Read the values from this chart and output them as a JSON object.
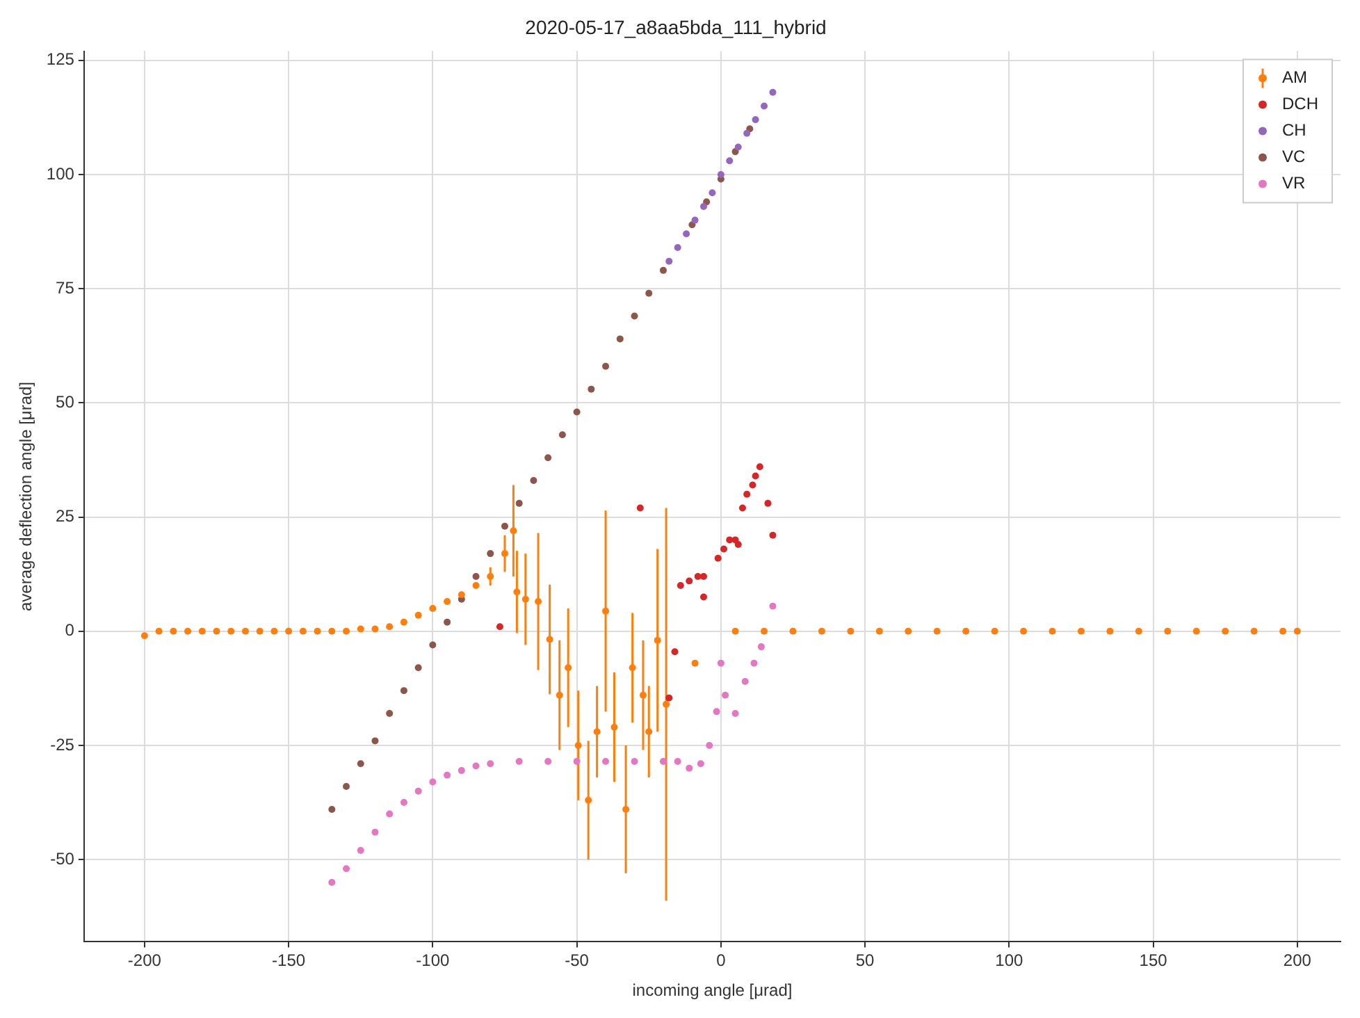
{
  "chart_data": {
    "type": "scatter",
    "title": "2020-05-17_a8aa5bda_111_hybrid",
    "xlabel": "incoming angle [μrad]",
    "ylabel": "average deflection angle [μrad]",
    "xlim": [
      -221,
      215
    ],
    "xticks": [
      -200,
      -150,
      -100,
      -50,
      0,
      50,
      100,
      150,
      200
    ],
    "ylim": [
      -68,
      127
    ],
    "yticks": [
      -50,
      -25,
      0,
      25,
      50,
      75,
      100,
      125
    ],
    "grid": true,
    "legend": "top right",
    "marker": "circle",
    "series": [
      {
        "name": "AM",
        "color": "#ff7f0e",
        "x": [
          -200,
          -195,
          -190,
          -185,
          -180,
          -175,
          -170,
          -165,
          -160,
          -155,
          -150,
          -145,
          -140,
          -135,
          -130,
          -125,
          -120,
          -115,
          -110,
          -105,
          -100,
          -95,
          -90,
          -85,
          -80,
          -75,
          -72,
          -70.8,
          -67.8,
          -63.4,
          -59.4,
          -56,
          -53,
          -49.5,
          -46,
          -43,
          -40,
          -37,
          -33,
          -30.7,
          -27,
          -25,
          -22,
          -19,
          -9,
          5,
          15,
          25,
          35,
          45,
          55,
          65,
          75,
          85,
          95,
          105,
          115,
          125,
          135,
          145,
          155,
          165,
          175,
          185,
          195,
          200
        ],
        "values": [
          -1,
          0,
          0,
          0,
          0,
          0,
          0,
          0,
          0,
          0,
          0,
          0,
          0,
          0,
          0,
          0.5,
          0.5,
          1,
          2,
          3.5,
          5,
          6.5,
          8,
          10,
          12,
          17,
          22,
          8.6,
          7,
          6.5,
          -1.8,
          -14,
          -8,
          -25,
          -37,
          -22,
          4.4,
          -21,
          -39,
          -8,
          -14,
          -22,
          -2,
          -16,
          -7,
          0,
          0,
          0,
          0,
          0,
          0,
          0,
          0,
          0,
          0,
          0,
          0,
          0,
          0,
          0,
          0,
          0,
          0,
          0,
          0,
          0
        ],
        "errors": [
          null,
          null,
          null,
          null,
          null,
          null,
          null,
          null,
          null,
          null,
          null,
          null,
          null,
          null,
          null,
          null,
          null,
          null,
          null,
          null,
          null,
          null,
          null,
          null,
          2,
          4,
          10,
          9,
          10,
          15,
          12,
          12,
          13,
          12,
          13,
          10,
          22,
          12,
          14,
          12,
          12,
          10,
          20,
          43,
          null,
          null,
          null,
          null,
          null,
          null,
          null,
          null,
          null,
          null,
          null,
          null,
          null,
          null,
          null,
          null,
          null,
          null,
          null,
          null,
          null,
          null
        ]
      },
      {
        "name": "DCH",
        "color": "#d62728",
        "x": [
          -76.7,
          -28,
          -18,
          -16,
          -14,
          -11,
          -8,
          -6,
          -6,
          -1,
          1,
          3,
          5,
          6,
          7.5,
          9,
          11,
          12,
          13.5,
          16.3,
          18
        ],
        "values": [
          1,
          27,
          -14.6,
          -4.5,
          10,
          11,
          12,
          12,
          7.5,
          16,
          18,
          20,
          20,
          19,
          27,
          30,
          32,
          34,
          36,
          28,
          21
        ]
      },
      {
        "name": "CH",
        "color": "#9467bd",
        "x": [
          -18,
          -15,
          -12,
          -9,
          -6,
          -3,
          0,
          3,
          6,
          9,
          12,
          15,
          18
        ],
        "values": [
          81,
          84,
          87,
          90,
          93,
          96,
          100,
          103,
          106,
          109,
          112,
          115,
          118
        ]
      },
      {
        "name": "VC",
        "color": "#8c564b",
        "x": [
          -135,
          -130,
          -125,
          -120,
          -115,
          -110,
          -105,
          -100,
          -95,
          -90,
          -85,
          -80,
          -75,
          -70,
          -65,
          -60,
          -55,
          -50,
          -45,
          -40,
          -35,
          -30,
          -25,
          -20,
          -15,
          -10,
          -5,
          0,
          5,
          10
        ],
        "values": [
          -39,
          -34,
          -29,
          -24,
          -18,
          -13,
          -8,
          -3,
          2,
          7,
          12,
          17,
          23,
          28,
          33,
          38,
          43,
          48,
          53,
          58,
          64,
          69,
          74,
          79,
          null,
          89,
          94,
          99,
          105,
          110
        ]
      },
      {
        "name": "VR",
        "color": "#e377c2",
        "x": [
          -135,
          -130,
          -125,
          -120,
          -115,
          -110,
          -105,
          -100,
          -95,
          -90,
          -85,
          -80,
          -70,
          -60,
          -50,
          -40,
          -30,
          -20,
          -15,
          -11,
          -7,
          -4,
          -1.5,
          0,
          1.5,
          5,
          8.4,
          11.5,
          14,
          18
        ],
        "values": [
          -55,
          -52,
          -48,
          -44,
          -40,
          -37.5,
          -35,
          -33,
          -31.5,
          -30.5,
          -29.5,
          -29,
          -28.5,
          -28.5,
          -28.5,
          -28.5,
          -28.5,
          -28.5,
          -28.5,
          -30,
          -29,
          -25,
          -17.6,
          -7,
          -14,
          -18,
          -11,
          -7,
          -3.4,
          5.5
        ]
      }
    ]
  }
}
